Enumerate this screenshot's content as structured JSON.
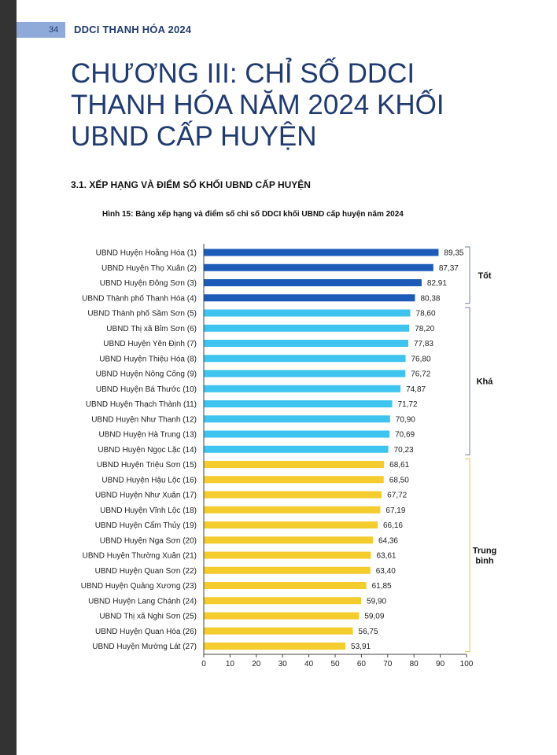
{
  "header": {
    "page_number": "34",
    "title": "DDCI THANH HÓA 2024"
  },
  "chapter_title_lines": [
    "CHƯƠNG III: CHỈ SỐ DDCI",
    "THANH HÓA NĂM 2024 KHỐI",
    "UBND CẤP HUYỆN"
  ],
  "section_title": "3.1. XẾP HẠNG VÀ ĐIỂM SỐ KHỐI UBND CẤP HUYỆN",
  "figure_caption": "Hình 15: Bảng xếp hạng và điểm số chỉ số DDCI khối UBND cấp huyện năm 2024",
  "colors": {
    "tot": "#1c5cb8",
    "kha": "#3fc3ef",
    "trung_binh": "#f5cc2e",
    "bracket_tot_kha": "#6e7db8",
    "bracket_tb": "#f0c040",
    "text_dark": "#1f3b70"
  },
  "chart_data": {
    "type": "bar",
    "orientation": "horizontal",
    "categories": [
      "UBND Huyện Hoằng Hóa (1)",
      "UBND Huyện Thọ Xuân (2)",
      "UBND Huyện Đông Sơn (3)",
      "UBND Thành phố Thanh Hóa (4)",
      "UBND Thành phố Sầm Sơn (5)",
      "UBND Thị xã Bỉm Sơn (6)",
      "UBND Huyện Yên Định (7)",
      "UBND Huyện Thiệu Hóa (8)",
      "UBND Huyện Nông Cống (9)",
      "UBND Huyện Bá Thước (10)",
      "UBND Huyện Thạch Thành (11)",
      "UBND Huyện Như Thanh (12)",
      "UBND Huyện Hà Trung (13)",
      "UBND Huyện Ngọc Lặc (14)",
      "UBND Huyện Triệu Sơn (15)",
      "UBND Huyện Hậu Lộc (16)",
      "UBND Huyện Như Xuân (17)",
      "UBND Huyện Vĩnh Lộc (18)",
      "UBND Huyện Cẩm Thủy (19)",
      "UBND Huyện Nga Sơn (20)",
      "UBND Huyện Thường Xuân (21)",
      "UBND Huyện Quan Sơn (22)",
      "UBND Huyện Quảng Xương (23)",
      "UBND Huyện Lang Chánh (24)",
      "UBND Thị xã Nghi Sơn (25)",
      "UBND Huyện Quan Hóa (26)",
      "UBND Huyện Mường Lát (27)"
    ],
    "values": [
      89.35,
      87.37,
      82.91,
      80.38,
      78.6,
      78.2,
      77.83,
      76.8,
      76.72,
      74.87,
      71.72,
      70.9,
      70.69,
      70.23,
      68.61,
      68.5,
      67.72,
      67.19,
      66.16,
      64.36,
      63.61,
      63.4,
      61.85,
      59.9,
      59.09,
      56.75,
      53.91
    ],
    "value_labels": [
      "89,35",
      "87,37",
      "82,91",
      "80,38",
      "78,60",
      "78,20",
      "77,83",
      "76,80",
      "76,72",
      "74,87",
      "71,72",
      "70,90",
      "70,69",
      "70,23",
      "68,61",
      "68,50",
      "67,72",
      "67,19",
      "66,16",
      "64,36",
      "63,61",
      "63,40",
      "61,85",
      "59,90",
      "59,09",
      "56,75",
      "53,91"
    ],
    "groups": [
      {
        "label_lines": [
          "Tốt"
        ],
        "start": 0,
        "end": 3,
        "color_key": "tot"
      },
      {
        "label_lines": [
          "Khá"
        ],
        "start": 4,
        "end": 13,
        "color_key": "kha"
      },
      {
        "label_lines": [
          "Trung",
          "bình"
        ],
        "start": 14,
        "end": 26,
        "color_key": "trung_binh"
      }
    ],
    "xlim": [
      0,
      100
    ],
    "xticks": [
      0,
      10,
      20,
      30,
      40,
      50,
      60,
      70,
      80,
      90,
      100
    ],
    "grid": false,
    "legend": "none"
  }
}
